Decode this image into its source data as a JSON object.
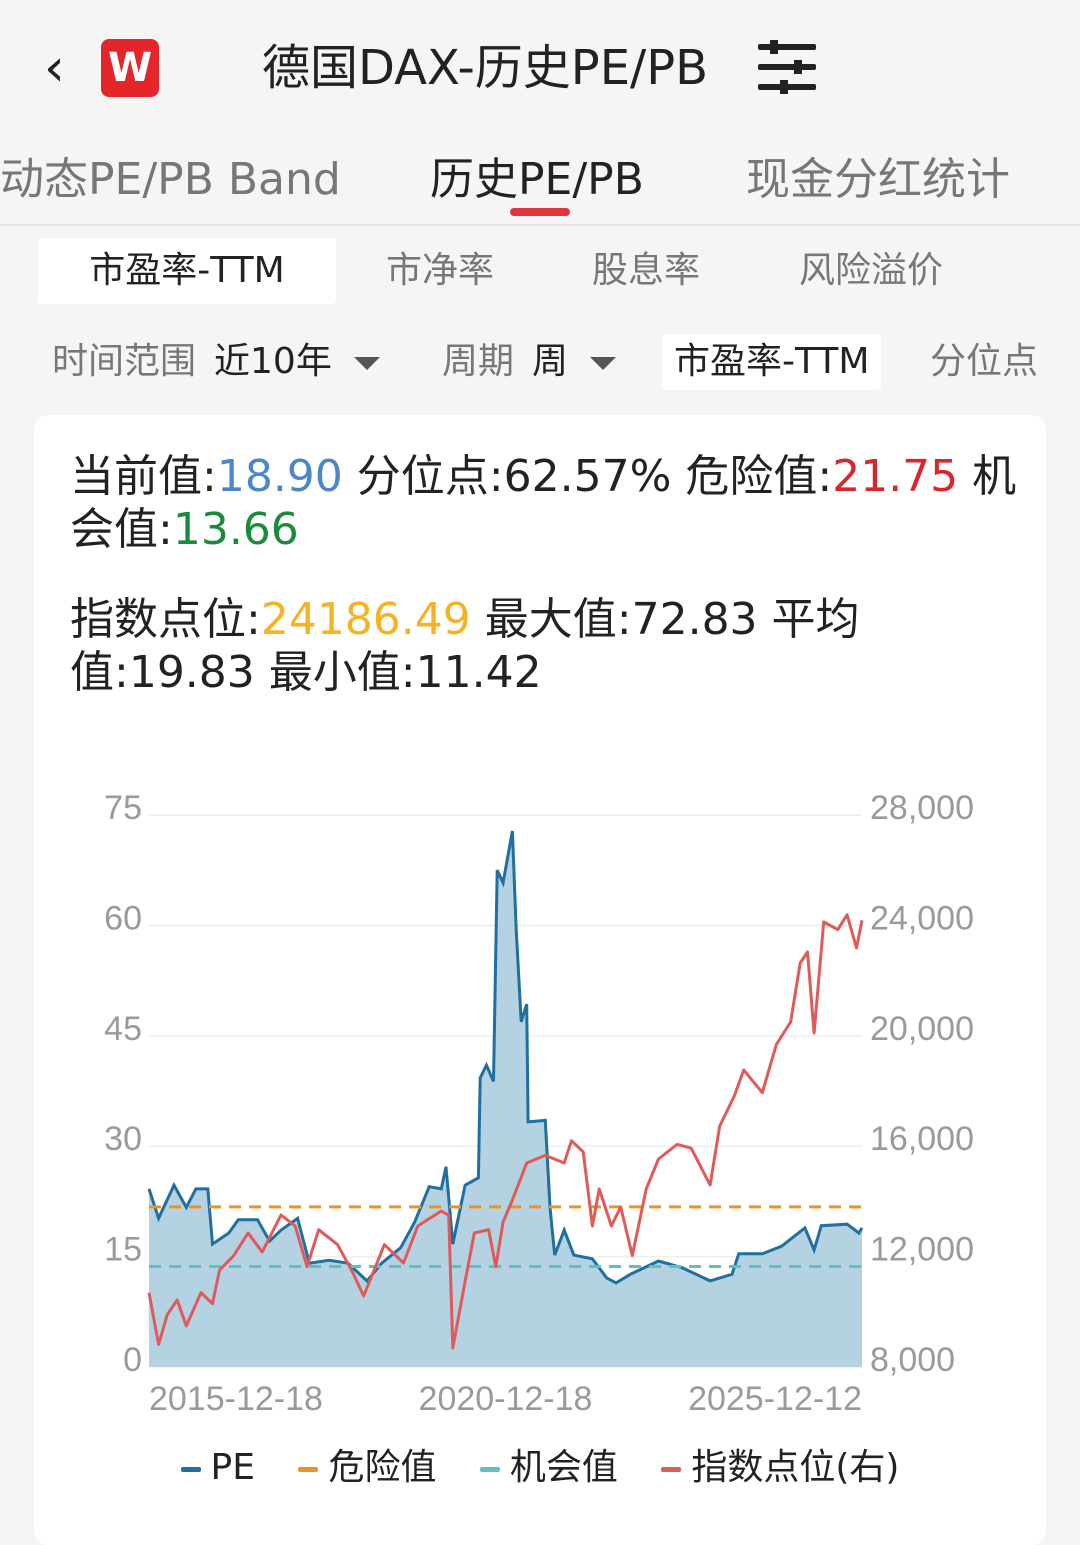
{
  "header": {
    "back_icon": "chevron-left-icon",
    "logo_text": "W",
    "title": "德国DAX-历史PE/PB",
    "filter_icon": "sliders-icon"
  },
  "tabs": [
    {
      "label": "动态PE/PB Band",
      "active": false
    },
    {
      "label": "历史PE/PB",
      "active": true
    },
    {
      "label": "现金分红统计",
      "active": false
    }
  ],
  "subtabs": [
    {
      "label": "市盈率-TTM",
      "active": true
    },
    {
      "label": "市净率",
      "active": false
    },
    {
      "label": "股息率",
      "active": false
    },
    {
      "label": "风险溢价",
      "active": false
    }
  ],
  "filters": {
    "range_label": "时间范围",
    "range_value": "近10年",
    "period_label": "周期",
    "period_value": "周",
    "metric": "市盈率-TTM",
    "quantile": "分位点"
  },
  "stats": {
    "current_label": "当前值:",
    "current": "18.90",
    "quantile_text": " 分位点:62.57% ",
    "danger_label": "危险值:",
    "danger": "21.75",
    "opp_label": " 机会值:",
    "opp": "13.66",
    "index_label": "指数点位:",
    "index": "24186.49",
    "rest": " 最大值:72.83 平均值:19.83 最小值:11.42"
  },
  "colors": {
    "pe_line": "#1f6fa0",
    "pe_area": "#b5d2e2",
    "danger": "#f0921e",
    "opportunity": "#5cc2c0",
    "index": "#e05a5a",
    "value_blue": "#4a86c8",
    "value_red": "#d9262c",
    "value_green": "#1b8a3c",
    "value_orange": "#f5b324"
  },
  "chart_data": {
    "type": "line",
    "x_ticks": [
      "2015-12-18",
      "2020-12-18",
      "2025-12-12"
    ],
    "y_left": {
      "ticks": [
        "0",
        "15",
        "30",
        "45",
        "60",
        "75"
      ],
      "range": [
        0,
        75
      ]
    },
    "y_right": {
      "ticks": [
        "8,000",
        "12,000",
        "16,000",
        "20,000",
        "24,000",
        "28,000"
      ],
      "range": [
        8000,
        28000
      ]
    },
    "grid": true,
    "legend_position": "bottom",
    "legend": [
      "PE",
      "危险值",
      "机会值",
      "指数点位(右)"
    ],
    "series": [
      {
        "name": "PE",
        "axis": "left",
        "style": "area",
        "points": [
          [
            "2015-12-18",
            24.2
          ],
          [
            "2016-02-05",
            20.2
          ],
          [
            "2016-04-24",
            24.7
          ],
          [
            "2016-06-26",
            21.7
          ],
          [
            "2016-08-14",
            24.2
          ],
          [
            "2016-10-14",
            24.2
          ],
          [
            "2016-11-07",
            16.7
          ],
          [
            "2017-01-29",
            18.2
          ],
          [
            "2017-03-19",
            20.0
          ],
          [
            "2017-06-25",
            20.0
          ],
          [
            "2017-08-26",
            17.1
          ],
          [
            "2017-10-23",
            18.6
          ],
          [
            "2018-01-16",
            20.2
          ],
          [
            "2018-03-17",
            14.1
          ],
          [
            "2018-06-26",
            14.5
          ],
          [
            "2018-10-01",
            14.1
          ],
          [
            "2019-01-06",
            11.7
          ],
          [
            "2019-03-22",
            14.1
          ],
          [
            "2019-06-27",
            16.2
          ],
          [
            "2019-09-07",
            19.7
          ],
          [
            "2019-11-20",
            24.5
          ],
          [
            "2020-01-21",
            24.2
          ],
          [
            "2020-02-14",
            27.2
          ],
          [
            "2020-03-20",
            16.7
          ],
          [
            "2020-05-22",
            24.7
          ],
          [
            "2020-07-29",
            25.7
          ],
          [
            "2020-08-07",
            39.3
          ],
          [
            "2020-09-08",
            41.0
          ],
          [
            "2020-10-14",
            38.8
          ],
          [
            "2020-11-02",
            67.5
          ],
          [
            "2020-12-02",
            65.8
          ],
          [
            "2021-01-19",
            72.83
          ],
          [
            "2021-02-07",
            59.4
          ],
          [
            "2021-03-05",
            46.9
          ],
          [
            "2021-04-02",
            49.3
          ],
          [
            "2021-04-09",
            33.3
          ],
          [
            "2021-07-06",
            33.5
          ],
          [
            "2021-07-30",
            21.7
          ],
          [
            "2021-08-23",
            15.2
          ],
          [
            "2021-10-11",
            18.6
          ],
          [
            "2021-11-29",
            15.2
          ],
          [
            "2022-03-04",
            14.7
          ],
          [
            "2022-05-16",
            12.1
          ],
          [
            "2022-07-03",
            11.42
          ],
          [
            "2022-09-14",
            12.6
          ],
          [
            "2023-02-05",
            14.4
          ],
          [
            "2023-06-05",
            13.5
          ],
          [
            "2023-10-27",
            11.7
          ],
          [
            "2024-02-16",
            12.6
          ],
          [
            "2024-03-22",
            15.4
          ],
          [
            "2024-07-20",
            15.4
          ],
          [
            "2024-10-26",
            16.4
          ],
          [
            "2025-02-23",
            18.9
          ],
          [
            "2025-04-11",
            15.9
          ],
          [
            "2025-05-18",
            19.2
          ],
          [
            "2025-09-27",
            19.4
          ],
          [
            "2025-11-26",
            18.2
          ],
          [
            "2025-12-12",
            18.9
          ]
        ]
      },
      {
        "name": "危险值",
        "axis": "left",
        "style": "dashed",
        "value": 21.75
      },
      {
        "name": "机会值",
        "axis": "left",
        "style": "dashed",
        "value": 13.66
      },
      {
        "name": "指数点位(右)",
        "axis": "right",
        "style": "line",
        "points": [
          [
            "2015-12-18",
            10695
          ],
          [
            "2016-02-05",
            8819
          ],
          [
            "2016-03-20",
            9891
          ],
          [
            "2016-05-10",
            10427
          ],
          [
            "2016-06-26",
            9485
          ],
          [
            "2016-09-09",
            10695
          ],
          [
            "2016-11-07",
            10293
          ],
          [
            "2016-12-13",
            11514
          ],
          [
            "2017-02-24",
            12036
          ],
          [
            "2017-05-08",
            12855
          ],
          [
            "2017-07-19",
            12167
          ],
          [
            "2017-10-23",
            13507
          ],
          [
            "2018-01-04",
            13109
          ],
          [
            "2018-03-05",
            11634
          ],
          [
            "2018-05-04",
            12974
          ],
          [
            "2018-08-08",
            12435
          ],
          [
            "2018-10-19",
            11514
          ],
          [
            "2018-12-20",
            10572
          ],
          [
            "2019-04-05",
            12435
          ],
          [
            "2019-07-12",
            11768
          ],
          [
            "2019-09-23",
            13109
          ],
          [
            "2020-01-21",
            13652
          ],
          [
            "2020-02-28",
            13500
          ],
          [
            "2020-03-20",
            8688
          ],
          [
            "2020-05-22",
            11098
          ],
          [
            "2020-07-08",
            12855
          ],
          [
            "2020-09-19",
            12974
          ],
          [
            "2020-10-26",
            11634
          ],
          [
            "2020-12-02",
            13253
          ],
          [
            "2021-01-19",
            14050
          ],
          [
            "2021-04-02",
            15391
          ],
          [
            "2021-07-06",
            15667
          ],
          [
            "2021-10-11",
            15391
          ],
          [
            "2021-11-17",
            16199
          ],
          [
            "2022-01-16",
            15793
          ],
          [
            "2022-03-04",
            13109
          ],
          [
            "2022-04-08",
            14449
          ],
          [
            "2022-06-09",
            13109
          ],
          [
            "2022-07-27",
            13797
          ],
          [
            "2022-09-24",
            12036
          ],
          [
            "2022-12-04",
            14449
          ],
          [
            "2023-02-05",
            15536
          ],
          [
            "2023-05-11",
            16065
          ],
          [
            "2023-07-22",
            15930
          ],
          [
            "2023-10-27",
            14594
          ],
          [
            "2023-12-15",
            16732
          ],
          [
            "2024-02-28",
            17818
          ],
          [
            "2024-04-16",
            18760
          ],
          [
            "2024-07-20",
            17942
          ],
          [
            "2024-09-30",
            19688
          ],
          [
            "2024-12-12",
            20500
          ],
          [
            "2025-01-30",
            22637
          ],
          [
            "2025-03-08",
            23040
          ],
          [
            "2025-04-11",
            20101
          ],
          [
            "2025-05-30",
            24123
          ],
          [
            "2025-08-10",
            23848
          ],
          [
            "2025-09-27",
            24384
          ],
          [
            "2025-11-14",
            23180
          ],
          [
            "2025-12-12",
            24186.49
          ]
        ]
      }
    ]
  }
}
